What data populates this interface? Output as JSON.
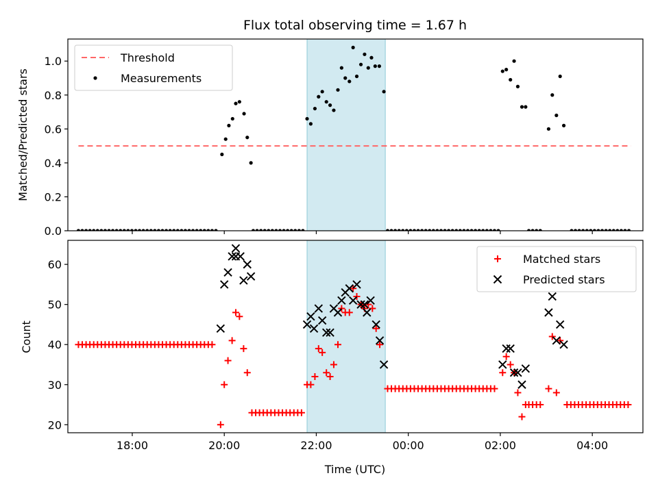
{
  "chart_data": [
    {
      "type": "scatter",
      "title": "Flux total observing time = 1.67 h",
      "ylabel": "Matched/Predicted stars",
      "xlim": [
        16.6,
        29.1
      ],
      "ylim": [
        0,
        1.13
      ],
      "x_ticks": [
        18,
        20,
        22,
        24,
        26,
        28
      ],
      "x_ticks_labeled": false,
      "y_ticks": [
        0.0,
        0.2,
        0.4,
        0.6,
        0.8,
        1.0
      ],
      "y_tick_labels": [
        "0.0",
        "0.2",
        "0.4",
        "0.6",
        "0.8",
        "1.0"
      ],
      "shaded_region": {
        "x_start": 21.8,
        "x_end": 23.5,
        "color": "#add8e6"
      },
      "threshold": {
        "name": "Threshold",
        "value": 0.5,
        "x_start": 16.83,
        "x_end": 28.84,
        "color": "#ff6666",
        "style": "dashed"
      },
      "legend": {
        "position": "top-left",
        "entries": [
          "Threshold",
          "Measurements"
        ]
      },
      "series": [
        {
          "name": "Measurements",
          "marker": "dot",
          "color": "#000000",
          "zero_runs": [
            {
              "x_start": 16.83,
              "x_end": 19.85,
              "step": 0.083,
              "y": 0
            },
            {
              "x_start": 20.63,
              "x_end": 21.72,
              "step": 0.083,
              "y": 0
            },
            {
              "x_start": 23.55,
              "x_end": 26.0,
              "step": 0.083,
              "y": 0
            },
            {
              "x_start": 26.62,
              "x_end": 26.95,
              "step": 0.083,
              "y": 0
            },
            {
              "x_start": 27.55,
              "x_end": 28.84,
              "step": 0.083,
              "y": 0
            }
          ],
          "points": [
            [
              19.95,
              0.45
            ],
            [
              20.03,
              0.54
            ],
            [
              20.1,
              0.62
            ],
            [
              20.18,
              0.66
            ],
            [
              20.25,
              0.75
            ],
            [
              20.33,
              0.76
            ],
            [
              20.43,
              0.69
            ],
            [
              20.5,
              0.55
            ],
            [
              20.58,
              0.4
            ],
            [
              21.8,
              0.66
            ],
            [
              21.88,
              0.63
            ],
            [
              21.97,
              0.72
            ],
            [
              22.05,
              0.79
            ],
            [
              22.13,
              0.82
            ],
            [
              22.22,
              0.76
            ],
            [
              22.3,
              0.74
            ],
            [
              22.38,
              0.71
            ],
            [
              22.47,
              0.83
            ],
            [
              22.55,
              0.96
            ],
            [
              22.63,
              0.9
            ],
            [
              22.72,
              0.88
            ],
            [
              22.8,
              1.08
            ],
            [
              22.88,
              0.91
            ],
            [
              22.97,
              0.98
            ],
            [
              23.05,
              1.04
            ],
            [
              23.13,
              0.96
            ],
            [
              23.2,
              1.02
            ],
            [
              23.28,
              0.97
            ],
            [
              23.37,
              0.97
            ],
            [
              23.47,
              0.82
            ],
            [
              26.05,
              0.94
            ],
            [
              26.13,
              0.95
            ],
            [
              26.22,
              0.89
            ],
            [
              26.3,
              1.0
            ],
            [
              26.38,
              0.85
            ],
            [
              26.47,
              0.73
            ],
            [
              26.55,
              0.73
            ],
            [
              27.05,
              0.6
            ],
            [
              27.13,
              0.8
            ],
            [
              27.22,
              0.68
            ],
            [
              27.3,
              0.91
            ],
            [
              27.38,
              0.62
            ]
          ]
        }
      ]
    },
    {
      "type": "scatter",
      "ylabel": "Count",
      "xlabel": "Time (UTC)",
      "xlim": [
        16.6,
        29.1
      ],
      "ylim": [
        18,
        66
      ],
      "x_ticks": [
        18,
        20,
        22,
        24,
        26,
        28
      ],
      "x_tick_labels": [
        "18:00",
        "20:00",
        "22:00",
        "00:00",
        "02:00",
        "04:00"
      ],
      "y_ticks": [
        20,
        30,
        40,
        50,
        60
      ],
      "y_tick_labels": [
        "20",
        "30",
        "40",
        "50",
        "60"
      ],
      "shaded_region": {
        "x_start": 21.8,
        "x_end": 23.5,
        "color": "#add8e6"
      },
      "legend": {
        "position": "top-right",
        "entries": [
          "Matched stars",
          "Predicted stars"
        ]
      },
      "series": [
        {
          "name": "Matched stars",
          "marker": "plus",
          "color": "#ff0000",
          "constant_runs": [
            {
              "x_start": 16.83,
              "x_end": 19.8,
              "step": 0.083,
              "y": 40
            },
            {
              "x_start": 20.6,
              "x_end": 21.72,
              "step": 0.083,
              "y": 23
            },
            {
              "x_start": 23.55,
              "x_end": 25.95,
              "step": 0.083,
              "y": 29
            },
            {
              "x_start": 26.62,
              "x_end": 26.95,
              "step": 0.083,
              "y": 25
            },
            {
              "x_start": 27.45,
              "x_end": 28.84,
              "step": 0.083,
              "y": 25
            }
          ],
          "points": [
            [
              19.92,
              20
            ],
            [
              20.0,
              30
            ],
            [
              20.08,
              36
            ],
            [
              20.17,
              41
            ],
            [
              20.25,
              48
            ],
            [
              20.33,
              47
            ],
            [
              20.42,
              39
            ],
            [
              20.5,
              33
            ],
            [
              21.8,
              30
            ],
            [
              21.88,
              30
            ],
            [
              21.97,
              32
            ],
            [
              22.05,
              39
            ],
            [
              22.13,
              38
            ],
            [
              22.22,
              33
            ],
            [
              22.3,
              32
            ],
            [
              22.38,
              35
            ],
            [
              22.47,
              40
            ],
            [
              22.55,
              49
            ],
            [
              22.63,
              48
            ],
            [
              22.72,
              48
            ],
            [
              22.8,
              54
            ],
            [
              22.88,
              52
            ],
            [
              22.97,
              50
            ],
            [
              23.05,
              49
            ],
            [
              23.13,
              50
            ],
            [
              23.22,
              49
            ],
            [
              23.3,
              44
            ],
            [
              23.38,
              40
            ],
            [
              26.05,
              33
            ],
            [
              26.13,
              37
            ],
            [
              26.22,
              35
            ],
            [
              26.3,
              33
            ],
            [
              26.38,
              28
            ],
            [
              26.47,
              22
            ],
            [
              26.55,
              25
            ],
            [
              27.05,
              29
            ],
            [
              27.13,
              42
            ],
            [
              27.22,
              28
            ],
            [
              27.3,
              41
            ]
          ]
        },
        {
          "name": "Predicted stars",
          "marker": "x",
          "color": "#000000",
          "points": [
            [
              19.92,
              44
            ],
            [
              20.0,
              55
            ],
            [
              20.08,
              58
            ],
            [
              20.17,
              62
            ],
            [
              20.25,
              64
            ],
            [
              20.25,
              62
            ],
            [
              20.35,
              62
            ],
            [
              20.42,
              56
            ],
            [
              20.5,
              60
            ],
            [
              20.58,
              57
            ],
            [
              21.8,
              45
            ],
            [
              21.88,
              47
            ],
            [
              21.95,
              44
            ],
            [
              22.05,
              49
            ],
            [
              22.13,
              46
            ],
            [
              22.22,
              43
            ],
            [
              22.3,
              43
            ],
            [
              22.38,
              49
            ],
            [
              22.47,
              48
            ],
            [
              22.55,
              51
            ],
            [
              22.63,
              53
            ],
            [
              22.72,
              54
            ],
            [
              22.8,
              51
            ],
            [
              22.88,
              55
            ],
            [
              22.97,
              50
            ],
            [
              23.05,
              50
            ],
            [
              23.1,
              48
            ],
            [
              23.18,
              51
            ],
            [
              23.3,
              45
            ],
            [
              23.38,
              41
            ],
            [
              23.47,
              35
            ],
            [
              26.05,
              35
            ],
            [
              26.13,
              39
            ],
            [
              26.22,
              39
            ],
            [
              26.3,
              33
            ],
            [
              26.38,
              33
            ],
            [
              26.47,
              30
            ],
            [
              26.55,
              34
            ],
            [
              27.05,
              48
            ],
            [
              27.13,
              52
            ],
            [
              27.22,
              41
            ],
            [
              27.3,
              45
            ],
            [
              27.38,
              40
            ]
          ]
        }
      ]
    }
  ]
}
